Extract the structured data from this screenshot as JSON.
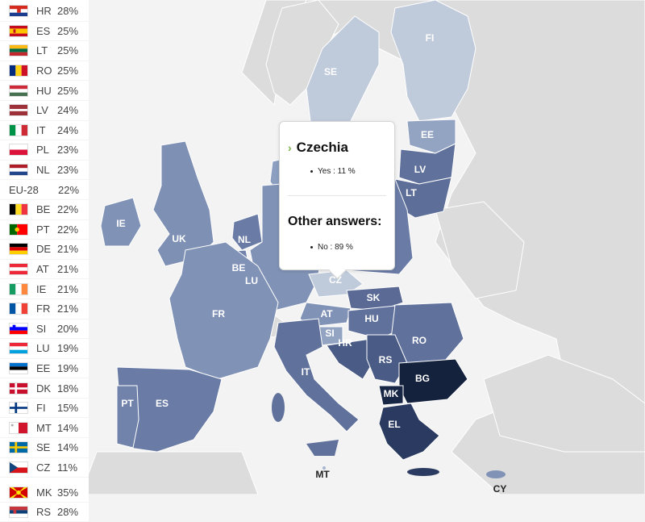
{
  "colors": {
    "ocean": "#f3f3f3",
    "nonEU": "#dcdcdc",
    "border": "#ffffff",
    "level_11": "#bfcadb",
    "level_14": "#a8b6cf",
    "level_19": "#93a4c3",
    "level_21": "#8092b6",
    "level_22": "#7183ab",
    "level_24": "#60719c",
    "level_28": "#4a5b85",
    "level_30": "#3e4d75",
    "level_35": "#14223e",
    "accent": "#7ab648"
  },
  "legend": [
    {
      "code": "HR",
      "value": "28%",
      "flag": "HR"
    },
    {
      "code": "ES",
      "value": "25%",
      "flag": "ES"
    },
    {
      "code": "LT",
      "value": "25%",
      "flag": "LT"
    },
    {
      "code": "RO",
      "value": "25%",
      "flag": "RO"
    },
    {
      "code": "HU",
      "value": "25%",
      "flag": "HU"
    },
    {
      "code": "LV",
      "value": "24%",
      "flag": "LV"
    },
    {
      "code": "IT",
      "value": "24%",
      "flag": "IT"
    },
    {
      "code": "PL",
      "value": "23%",
      "flag": "PL"
    },
    {
      "code": "NL",
      "value": "23%",
      "flag": "NL"
    },
    {
      "code": "EU-28",
      "value": "22%",
      "flag": ""
    },
    {
      "code": "BE",
      "value": "22%",
      "flag": "BE"
    },
    {
      "code": "PT",
      "value": "22%",
      "flag": "PT"
    },
    {
      "code": "DE",
      "value": "21%",
      "flag": "DE"
    },
    {
      "code": "AT",
      "value": "21%",
      "flag": "AT"
    },
    {
      "code": "IE",
      "value": "21%",
      "flag": "IE"
    },
    {
      "code": "FR",
      "value": "21%",
      "flag": "FR"
    },
    {
      "code": "SI",
      "value": "20%",
      "flag": "SI"
    },
    {
      "code": "LU",
      "value": "19%",
      "flag": "LU"
    },
    {
      "code": "EE",
      "value": "19%",
      "flag": "EE"
    },
    {
      "code": "DK",
      "value": "18%",
      "flag": "DK"
    },
    {
      "code": "FI",
      "value": "15%",
      "flag": "FI"
    },
    {
      "code": "MT",
      "value": "14%",
      "flag": "MT"
    },
    {
      "code": "SE",
      "value": "14%",
      "flag": "SE"
    },
    {
      "code": "CZ",
      "value": "11%",
      "flag": "CZ"
    },
    {
      "code": "MK",
      "value": "35%",
      "flag": "MK"
    },
    {
      "code": "RS",
      "value": "28%",
      "flag": "RS"
    }
  ],
  "map_labels": [
    "FI",
    "SE",
    "EE",
    "LV",
    "LT",
    "IE",
    "UK",
    "NL",
    "BE",
    "LU",
    "FR",
    "CZ",
    "SK",
    "HU",
    "AT",
    "SI",
    "HR",
    "RO",
    "RS",
    "BG",
    "MK",
    "IT",
    "PT",
    "ES",
    "EL",
    "MT",
    "CY"
  ],
  "tooltip": {
    "country": "Czechia",
    "chevron": "›",
    "yes_item": "Yes : 11 %",
    "other_heading": "Other answers:",
    "no_item": "No : 89 %"
  }
}
